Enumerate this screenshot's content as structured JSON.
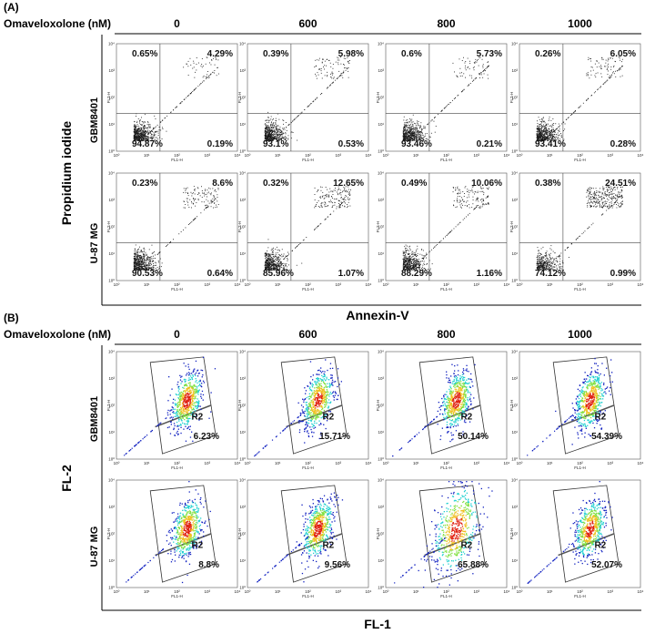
{
  "panel_a": {
    "letter": "(A)",
    "header_label": "Omaveloxolone (nM)",
    "concentrations": [
      "0",
      "600",
      "800",
      "1000"
    ],
    "y_title": "Propidium iodide",
    "x_title": "Annexin-V",
    "row_labels": [
      "GBM8401",
      "U-87 MG"
    ],
    "axis_x_name": "FL1-H",
    "axis_y_name": "FL2-H",
    "quadrants": [
      [
        {
          "ul": "0.65%",
          "ur": "4.29%",
          "ll": "94.87%",
          "lr": "0.19%"
        },
        {
          "ul": "0.39%",
          "ur": "5.98%",
          "ll": "93.1%",
          "lr": "0.53%"
        },
        {
          "ul": "0.6%",
          "ur": "5.73%",
          "ll": "93.46%",
          "lr": "0.21%"
        },
        {
          "ul": "0.26%",
          "ur": "6.05%",
          "ll": "93.41%",
          "lr": "0.28%"
        }
      ],
      [
        {
          "ul": "0.23%",
          "ur": "8.6%",
          "ll": "90.53%",
          "lr": "0.64%"
        },
        {
          "ul": "0.32%",
          "ur": "12.65%",
          "ll": "85.96%",
          "lr": "1.07%"
        },
        {
          "ul": "0.49%",
          "ur": "10.06%",
          "ll": "88.29%",
          "lr": "1.16%"
        },
        {
          "ul": "0.38%",
          "ur": "24.51%",
          "ll": "74.12%",
          "lr": "0.99%"
        }
      ]
    ]
  },
  "panel_b": {
    "letter": "(B)",
    "header_label": "Omaveloxolone (nM)",
    "concentrations": [
      "0",
      "600",
      "800",
      "1000"
    ],
    "y_title": "FL-2",
    "x_title": "FL-1",
    "row_labels": [
      "GBM8401",
      "U-87 MG"
    ],
    "axis_x_name": "FL1-H",
    "axis_y_name": "FL2-H",
    "gate_name": "R2",
    "gate_values": [
      [
        "6.23%",
        "15.71%",
        "50.14%",
        "54.39%"
      ],
      [
        "8.8%",
        "9.56%",
        "65.88%",
        "52.07%"
      ]
    ]
  },
  "tick_labels": [
    "10⁰",
    "10¹",
    "10²",
    "10³",
    "10⁴"
  ],
  "colors": {
    "dots": "#1a1a1a",
    "density_low": "#1020c0",
    "density_mid": "#20d0d0",
    "density_high": "#e02010",
    "gate_outline": "#333333"
  }
}
